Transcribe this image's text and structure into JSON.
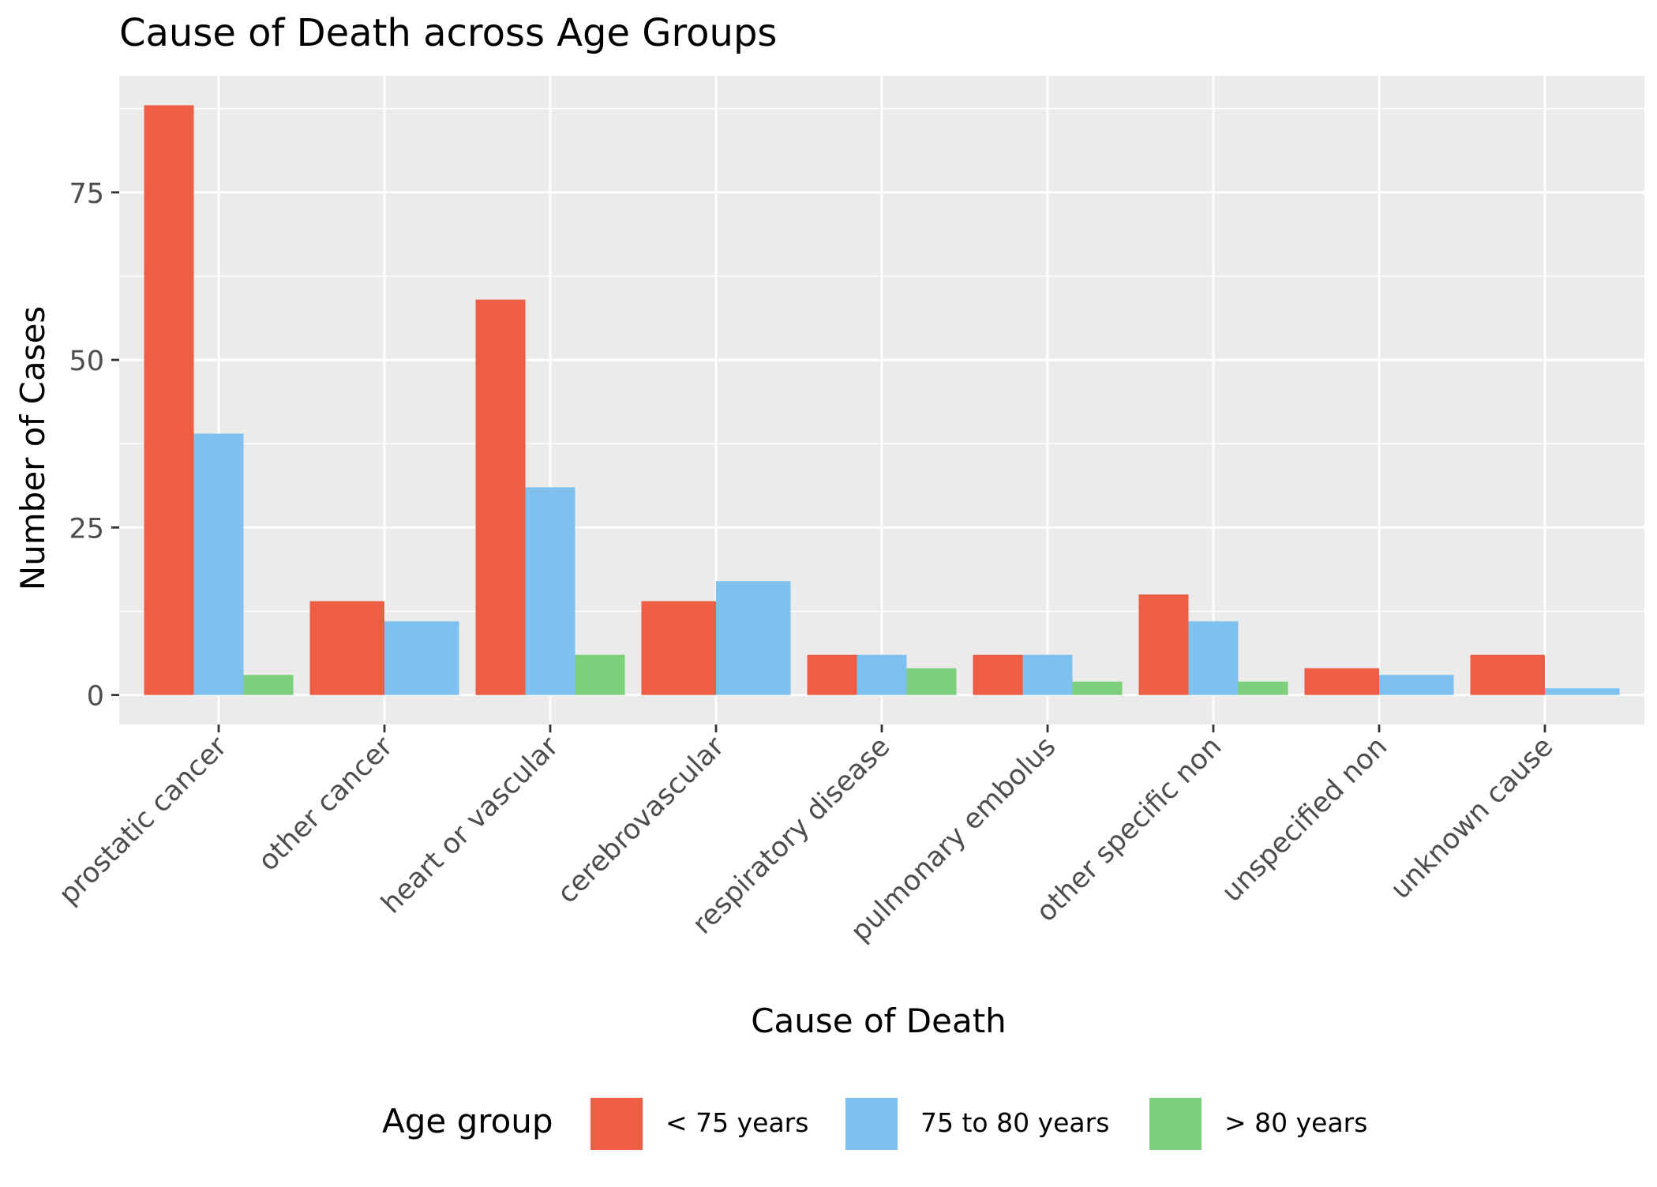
{
  "chart_data": {
    "type": "bar",
    "title": "Cause of Death across Age Groups",
    "xlabel": "Cause of Death",
    "ylabel": "Number of Cases",
    "categories": [
      "prostatic cancer",
      "other cancer",
      "heart or vascular",
      "cerebrovascular",
      "respiratory disease",
      "pulmonary embolus",
      "other specific non",
      "unspecified non",
      "unknown cause"
    ],
    "series": [
      {
        "name": "< 75 years",
        "color": "#EE5E45",
        "values": [
          88,
          14,
          59,
          14,
          6,
          6,
          15,
          4,
          6
        ]
      },
      {
        "name": "75 to 80 years",
        "color": "#7FC1EE",
        "values": [
          39,
          11,
          31,
          17,
          6,
          6,
          11,
          3,
          1
        ]
      },
      {
        "name": "> 80 years",
        "color": "#7ECF7C",
        "values": [
          3,
          null,
          6,
          null,
          4,
          2,
          2,
          null,
          null
        ]
      }
    ],
    "yticks": [
      0,
      25,
      50,
      75
    ],
    "ylim": [
      -4.4,
      92.4
    ],
    "grid": true,
    "legend": {
      "title": "Age group",
      "position": "bottom"
    },
    "colors": {
      "panel_background": "#EBEBEB",
      "gridline": "#FFFFFF",
      "tick_label": "#4D4D4D",
      "text": "#000000"
    }
  }
}
